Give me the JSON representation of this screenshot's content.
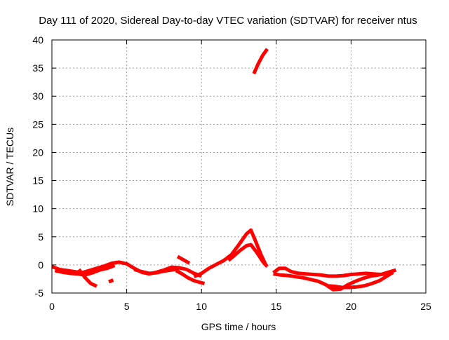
{
  "chart_data": {
    "type": "line",
    "title": "Day 111 of 2020, Sidereal Day-to-day VTEC variation (SDTVAR) for receiver ntus",
    "xlabel": "GPS time / hours",
    "ylabel": "SDTVAR / TECUs",
    "xlim": [
      0,
      25
    ],
    "ylim": [
      -5,
      40
    ],
    "xticks": [
      0,
      5,
      10,
      15,
      20,
      25
    ],
    "yticks": [
      -5,
      0,
      5,
      10,
      15,
      20,
      25,
      30,
      35,
      40
    ],
    "grid": true,
    "series_color": "#ff0000",
    "series": [
      {
        "name": "seg1",
        "x": [
          0,
          0.5,
          1.0,
          1.5,
          2.0,
          2.5,
          3.0,
          3.5,
          4.0,
          4.5,
          5.0,
          5.5,
          6.0,
          6.5,
          7.0,
          7.5,
          8.0,
          8.5,
          9.0,
          9.5,
          10.0
        ],
        "y": [
          -0.3,
          -0.8,
          -1.0,
          -1.2,
          -1.4,
          -1.0,
          -0.6,
          -0.2,
          0.3,
          0.5,
          0.2,
          -0.6,
          -1.3,
          -1.6,
          -1.3,
          -0.9,
          -0.4,
          -0.5,
          -0.8,
          -1.5,
          -2.0
        ]
      },
      {
        "name": "seg2",
        "x": [
          0.2,
          0.7,
          1.2,
          1.7,
          2.2,
          2.7,
          3.2,
          3.7,
          4.2
        ],
        "y": [
          -1.0,
          -1.3,
          -1.5,
          -1.6,
          -1.8,
          -1.4,
          -0.9,
          -0.6,
          -0.1
        ]
      },
      {
        "name": "seg3",
        "x": [
          1.8,
          2.2,
          2.6,
          3.0
        ],
        "y": [
          -0.8,
          -2.2,
          -3.3,
          -3.8
        ]
      },
      {
        "name": "seg4",
        "x": [
          3.8,
          4.1
        ],
        "y": [
          -3.0,
          -2.7
        ]
      },
      {
        "name": "seg5",
        "x": [
          5.5,
          6.0,
          6.5,
          7.0,
          7.5,
          8.0,
          8.5
        ],
        "y": [
          -0.8,
          -1.2,
          -1.5,
          -1.4,
          -1.1,
          -0.9,
          -0.7
        ]
      },
      {
        "name": "seg6",
        "x": [
          8.3,
          8.7,
          9.1,
          9.5,
          9.9,
          10.2
        ],
        "y": [
          -1.0,
          -1.6,
          -2.3,
          -2.8,
          -3.1,
          -3.3
        ]
      },
      {
        "name": "seg7",
        "x": [
          8.4,
          8.8,
          9.2
        ],
        "y": [
          1.5,
          0.9,
          0.3
        ]
      },
      {
        "name": "seg8",
        "x": [
          9.5,
          10.0,
          10.5,
          11.0,
          11.5,
          12.0,
          12.5,
          13.0,
          13.3,
          13.6,
          14.0,
          14.3
        ],
        "y": [
          -2.1,
          -1.5,
          -0.6,
          0.1,
          0.8,
          1.8,
          3.6,
          5.5,
          6.2,
          4.3,
          1.7,
          0.0
        ]
      },
      {
        "name": "seg9",
        "x": [
          11.8,
          12.2,
          12.6,
          13.0,
          13.3,
          13.7,
          14.1,
          14.4
        ],
        "y": [
          0.8,
          1.7,
          2.6,
          3.4,
          3.6,
          2.2,
          0.6,
          -0.3
        ]
      },
      {
        "name": "seg10",
        "x": [
          13.5,
          13.8,
          14.1,
          14.4
        ],
        "y": [
          34.0,
          35.8,
          37.3,
          38.4
        ]
      },
      {
        "name": "seg11",
        "x": [
          14.8,
          15.2,
          15.6,
          16.0,
          16.5,
          17.0,
          17.5,
          18.0,
          18.5,
          19.0,
          19.5,
          20.0,
          20.5,
          21.0,
          21.5,
          22.0,
          22.5,
          23.0
        ],
        "y": [
          -1.4,
          -0.6,
          -0.6,
          -1.2,
          -1.5,
          -1.6,
          -1.7,
          -1.8,
          -2.0,
          -2.0,
          -1.9,
          -1.7,
          -1.6,
          -1.5,
          -1.6,
          -1.7,
          -1.3,
          -0.9
        ]
      },
      {
        "name": "seg12",
        "x": [
          14.8,
          15.3,
          15.8,
          16.3,
          16.8,
          17.3,
          17.8,
          18.3,
          18.8,
          19.3,
          19.8,
          20.3,
          20.8,
          21.3,
          21.8,
          22.3,
          22.8
        ],
        "y": [
          -1.6,
          -1.8,
          -1.9,
          -2.1,
          -2.3,
          -2.6,
          -2.9,
          -3.5,
          -4.4,
          -4.3,
          -3.5,
          -2.9,
          -2.4,
          -2.0,
          -1.8,
          -1.6,
          -1.4
        ]
      },
      {
        "name": "seg13",
        "x": [
          18.4,
          18.9,
          19.4,
          19.9,
          20.4,
          20.9,
          21.4,
          21.9,
          22.4,
          22.8
        ],
        "y": [
          -3.7,
          -3.8,
          -4.0,
          -4.0,
          -3.9,
          -3.7,
          -3.3,
          -2.8,
          -2.0,
          -1.3
        ]
      }
    ]
  }
}
